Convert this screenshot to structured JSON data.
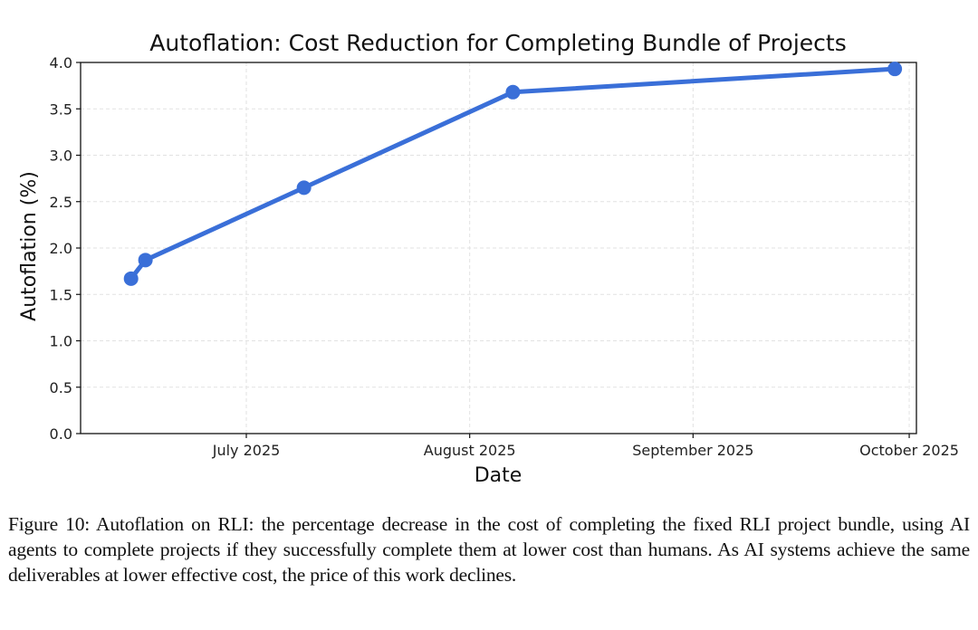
{
  "chart_data": {
    "type": "line",
    "title": "Autoflation: Cost Reduction for Completing Bundle of Projects",
    "xlabel": "Date",
    "ylabel": "Autoflation (%)",
    "ylim": [
      0.0,
      4.0
    ],
    "xlim": [
      "2025-06-08",
      "2025-10-02"
    ],
    "grid": true,
    "x_ticks": [
      {
        "date": "2025-07-01",
        "label": "July 2025"
      },
      {
        "date": "2025-08-01",
        "label": "August 2025"
      },
      {
        "date": "2025-09-01",
        "label": "September 2025"
      },
      {
        "date": "2025-10-01",
        "label": "October 2025"
      }
    ],
    "y_ticks": [
      "0.0",
      "0.5",
      "1.0",
      "1.5",
      "2.0",
      "2.5",
      "3.0",
      "3.5",
      "4.0"
    ],
    "series": [
      {
        "name": "Autoflation",
        "color": "#3a6fd8",
        "x": [
          "2025-06-15",
          "2025-06-17",
          "2025-07-09",
          "2025-08-07",
          "2025-09-29"
        ],
        "y": [
          1.67,
          1.87,
          2.65,
          3.68,
          3.93
        ]
      }
    ]
  },
  "caption": "Figure 10: Autoflation on RLI: the percentage decrease in the cost of completing the fixed RLI project bundle, using AI agents to complete projects if they successfully complete them at lower cost than humans. As AI systems achieve the same deliverables at lower effective cost, the price of this work declines."
}
